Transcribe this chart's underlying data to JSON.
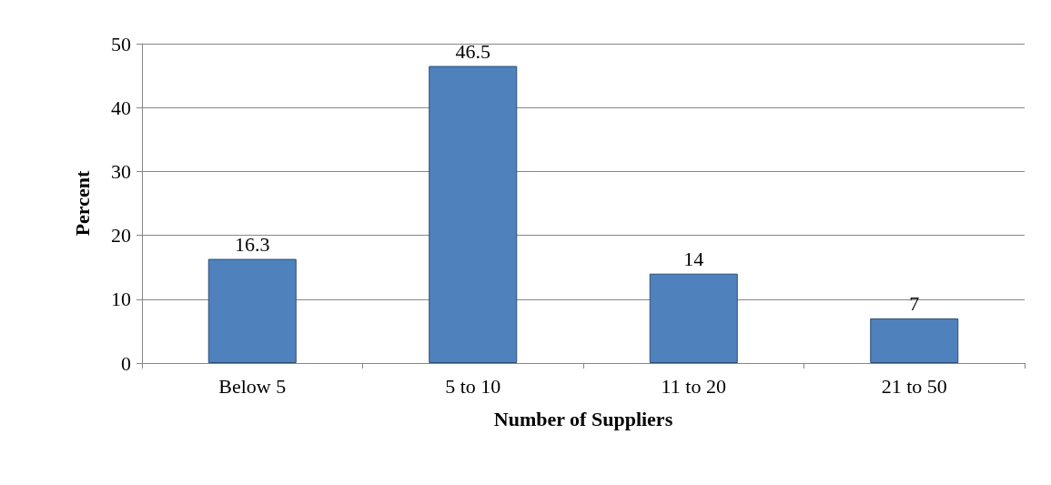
{
  "chart_data": {
    "type": "bar",
    "xlabel": "Number of Suppliers",
    "ylabel": "Percent",
    "categories": [
      "Below 5",
      "5 to 10",
      "11 to 20",
      "21 to 50"
    ],
    "values": [
      16.3,
      46.5,
      14,
      7
    ],
    "color": "#4f81bd",
    "ylim": [
      0,
      50
    ],
    "yticks": [
      0,
      10,
      20,
      30,
      40,
      50
    ],
    "grid": "y",
    "data_labels": true
  }
}
